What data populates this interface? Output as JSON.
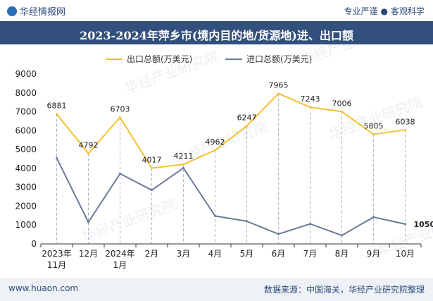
{
  "header": {
    "brand": "华经情报网",
    "tagline_left": "专业严谨",
    "tagline_right": "客观科学"
  },
  "title": "2023-2024年萍乡市(境内目的地/货源地)进、出口额",
  "footer": {
    "url": "www.huaon.com",
    "source": "数据来源：中国海关，华经产业研究院整理"
  },
  "watermark": "华经产业研究院",
  "colors": {
    "export": "#f2c12e",
    "import": "#6b7a99",
    "title_bg": "#33507d"
  },
  "chart_data": {
    "type": "line",
    "title": "",
    "xlabel": "",
    "ylabel": "",
    "categories": [
      [
        "2023年",
        "11月"
      ],
      [
        "12月"
      ],
      [
        "2024年",
        "1月"
      ],
      [
        "2月"
      ],
      [
        "3月"
      ],
      [
        "4月"
      ],
      [
        "5月"
      ],
      [
        "6月"
      ],
      [
        "7月"
      ],
      [
        "8月"
      ],
      [
        "9月"
      ],
      [
        "10月"
      ]
    ],
    "yticks": [
      0,
      1000,
      2000,
      3000,
      4000,
      5000,
      6000,
      7000,
      8000,
      9000
    ],
    "ylim": [
      0,
      9000
    ],
    "legend_position": "top-center",
    "series": [
      {
        "name": "出口总额(万美元)",
        "values": [
          6881,
          4792,
          6703,
          4017,
          4211,
          4962,
          6247,
          7965,
          7243,
          7006,
          5805,
          6038
        ],
        "labels": [
          "6881",
          "4792",
          "6703",
          "4017",
          "4211",
          "4962",
          "6247",
          "7965",
          "7243",
          "7006",
          "5805",
          "6038"
        ]
      },
      {
        "name": "进口总额(万美元)",
        "values": [
          4550,
          1150,
          3720,
          2850,
          4020,
          1480,
          1200,
          520,
          1060,
          450,
          1420,
          1050
        ],
        "labels": [
          "",
          "",
          "",
          "",
          "",
          "",
          "",
          "",
          "",
          "",
          "",
          "1050"
        ]
      }
    ]
  }
}
